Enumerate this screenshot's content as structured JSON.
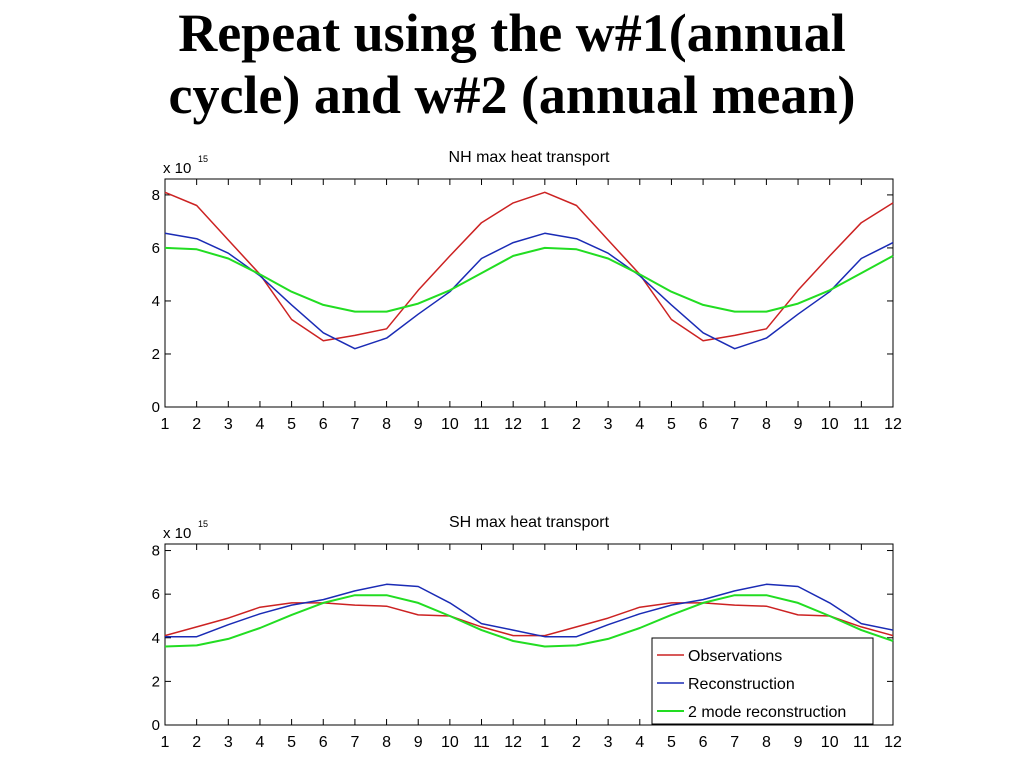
{
  "slide": {
    "title_lines": [
      "Repeat using the w#1(annual",
      "cycle) and w#2 (annual mean)"
    ]
  },
  "colors": {
    "observations": "#cc2222",
    "reconstruction": "#1a2bb5",
    "two_mode": "#22dd22"
  },
  "chart_data": [
    {
      "type": "line",
      "title": "NH max heat transport",
      "xlabel": "",
      "ylabel": "",
      "scale_note": "x 10",
      "scale_exp": "15",
      "categories": [
        "1",
        "2",
        "3",
        "4",
        "5",
        "6",
        "7",
        "8",
        "9",
        "10",
        "11",
        "12",
        "1",
        "2",
        "3",
        "4",
        "5",
        "6",
        "7",
        "8",
        "9",
        "10",
        "11",
        "12"
      ],
      "yticks": [
        0,
        2,
        4,
        6,
        8
      ],
      "ylim": [
        0,
        8.6
      ],
      "grid": false,
      "series": [
        {
          "name": "Observations",
          "color": "#cc2222",
          "width": 1.5,
          "values": [
            8.1,
            7.6,
            6.3,
            5.0,
            3.3,
            2.5,
            2.7,
            2.95,
            4.4,
            5.7,
            6.95,
            7.7,
            8.1,
            7.6,
            6.3,
            5.0,
            3.3,
            2.5,
            2.7,
            2.95,
            4.4,
            5.7,
            6.95,
            7.7
          ]
        },
        {
          "name": "Reconstruction",
          "color": "#1a2bb5",
          "width": 1.5,
          "values": [
            6.55,
            6.35,
            5.8,
            4.95,
            3.85,
            2.8,
            2.2,
            2.6,
            3.5,
            4.35,
            5.6,
            6.2,
            6.55,
            6.35,
            5.8,
            4.95,
            3.85,
            2.8,
            2.2,
            2.6,
            3.5,
            4.35,
            5.6,
            6.2
          ]
        },
        {
          "name": "2 mode reconstruction",
          "color": "#22dd22",
          "width": 2,
          "values": [
            6.0,
            5.95,
            5.6,
            5.0,
            4.35,
            3.85,
            3.6,
            3.6,
            3.9,
            4.4,
            5.05,
            5.7,
            6.0,
            5.95,
            5.6,
            5.0,
            4.35,
            3.85,
            3.6,
            3.6,
            3.9,
            4.4,
            5.05,
            5.7
          ]
        }
      ]
    },
    {
      "type": "line",
      "title": "SH max heat transport",
      "xlabel": "",
      "ylabel": "",
      "scale_note": "x 10",
      "scale_exp": "15",
      "categories": [
        "1",
        "2",
        "3",
        "4",
        "5",
        "6",
        "7",
        "8",
        "9",
        "10",
        "11",
        "12",
        "1",
        "2",
        "3",
        "4",
        "5",
        "6",
        "7",
        "8",
        "9",
        "10",
        "11",
        "12"
      ],
      "yticks": [
        0,
        2,
        4,
        6,
        8
      ],
      "ylim": [
        0,
        8.3
      ],
      "grid": false,
      "legend": {
        "placement": "bottom-right",
        "entries": [
          "Observations",
          "Reconstruction",
          "2 mode reconstruction"
        ]
      },
      "series": [
        {
          "name": "Observations",
          "color": "#cc2222",
          "width": 1.5,
          "values": [
            4.1,
            4.5,
            4.9,
            5.4,
            5.6,
            5.6,
            5.5,
            5.45,
            5.05,
            5.0,
            4.5,
            4.1,
            4.1,
            4.5,
            4.9,
            5.4,
            5.6,
            5.6,
            5.5,
            5.45,
            5.05,
            5.0,
            4.5,
            4.1
          ]
        },
        {
          "name": "Reconstruction",
          "color": "#1a2bb5",
          "width": 1.5,
          "values": [
            4.05,
            4.05,
            4.6,
            5.1,
            5.5,
            5.75,
            6.15,
            6.45,
            6.35,
            5.6,
            4.65,
            4.35,
            4.05,
            4.05,
            4.6,
            5.1,
            5.5,
            5.75,
            6.15,
            6.45,
            6.35,
            5.6,
            4.65,
            4.35
          ]
        },
        {
          "name": "2 mode reconstruction",
          "color": "#22dd22",
          "width": 2,
          "values": [
            3.6,
            3.65,
            3.95,
            4.45,
            5.05,
            5.6,
            5.95,
            5.95,
            5.6,
            5.0,
            4.35,
            3.85,
            3.6,
            3.65,
            3.95,
            4.45,
            5.05,
            5.6,
            5.95,
            5.95,
            5.6,
            5.0,
            4.35,
            3.85
          ]
        }
      ]
    }
  ]
}
